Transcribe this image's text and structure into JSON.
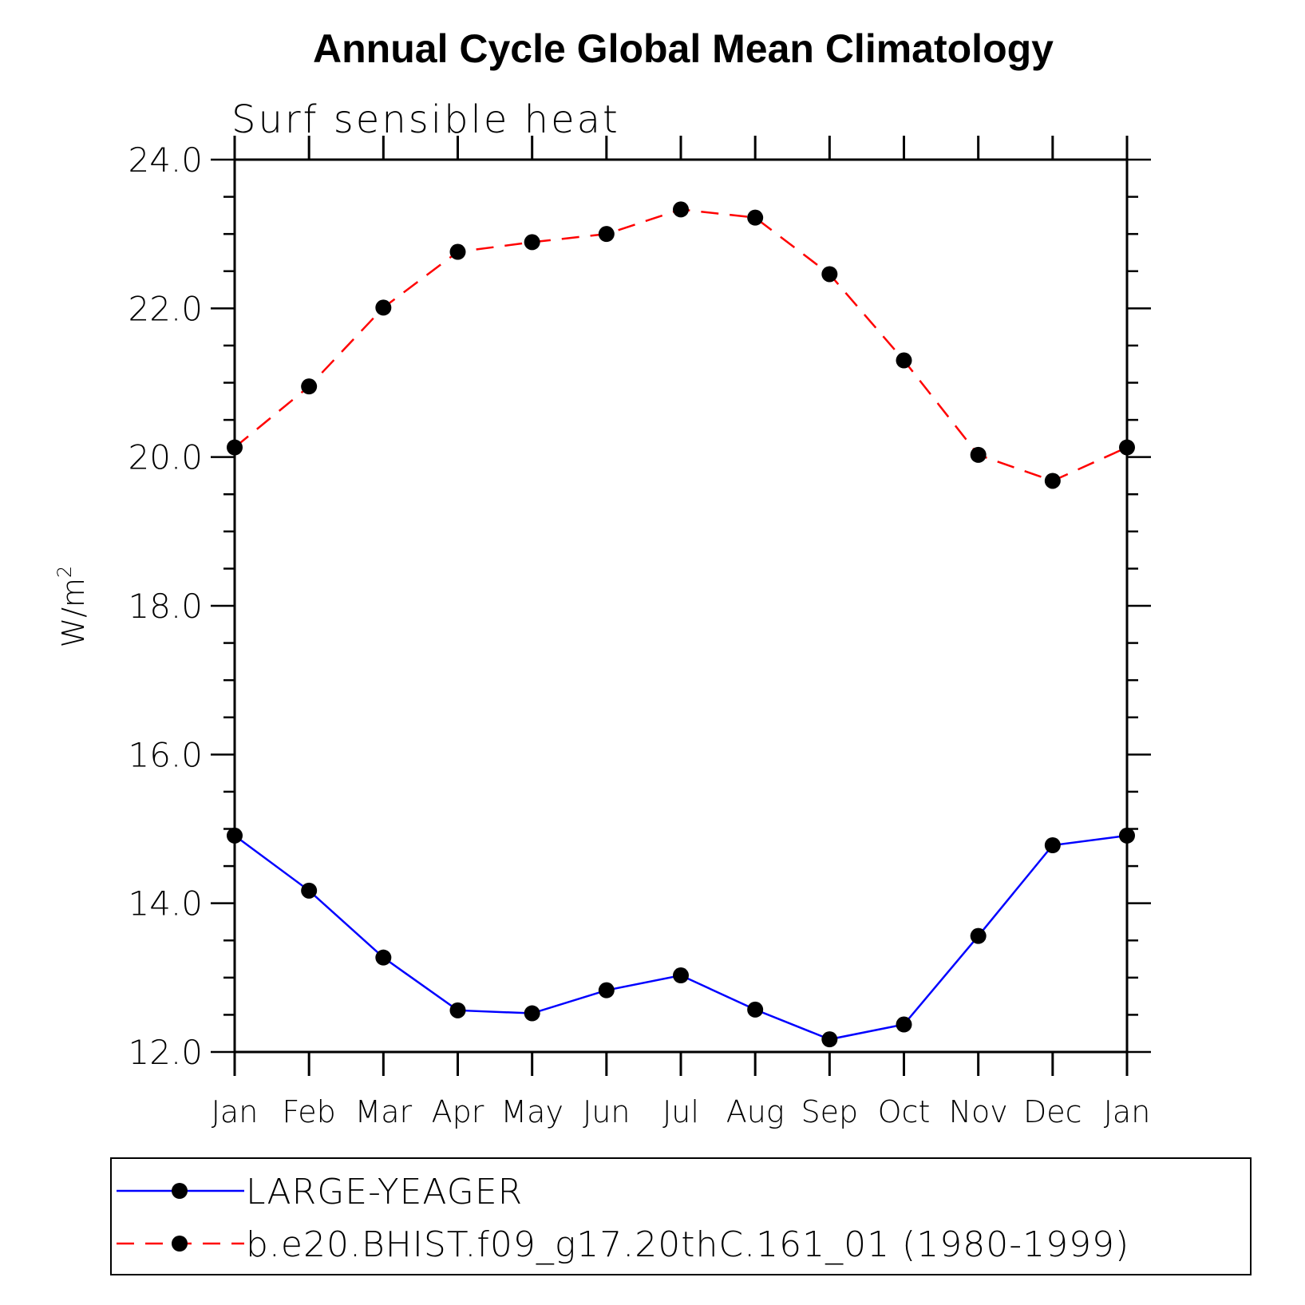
{
  "chart_data": {
    "type": "line",
    "title": "Annual Cycle Global Mean Climatology",
    "subtitle": "Surf sensible heat",
    "xlabel": "",
    "ylabel": "W/m",
    "ylabel_superscript": "2",
    "categories": [
      "Jan",
      "Feb",
      "Mar",
      "Apr",
      "May",
      "Jun",
      "Jul",
      "Aug",
      "Sep",
      "Oct",
      "Nov",
      "Dec",
      "Jan"
    ],
    "ylim": [
      12.0,
      24.0
    ],
    "yticks": [
      "12.0",
      "14.0",
      "16.0",
      "18.0",
      "20.0",
      "22.0",
      "24.0"
    ],
    "grid": false,
    "legend_placement": "bottom",
    "series": [
      {
        "name": "LARGE-YEAGER",
        "color": "#0000ff",
        "dash": "solid",
        "marker": "filled-circle",
        "values": [
          14.91,
          14.17,
          13.27,
          12.56,
          12.52,
          12.83,
          13.03,
          12.57,
          12.17,
          12.37,
          13.56,
          14.78,
          14.91
        ]
      },
      {
        "name": "b.e20.BHIST.f09_g17.20thC.161_01 (1980-1999)",
        "color": "#ff0000",
        "dash": "dashed",
        "marker": "filled-circle",
        "values": [
          20.13,
          20.95,
          22.01,
          22.76,
          22.89,
          23.0,
          23.33,
          23.22,
          22.46,
          21.3,
          20.03,
          19.68,
          20.13
        ]
      }
    ]
  }
}
